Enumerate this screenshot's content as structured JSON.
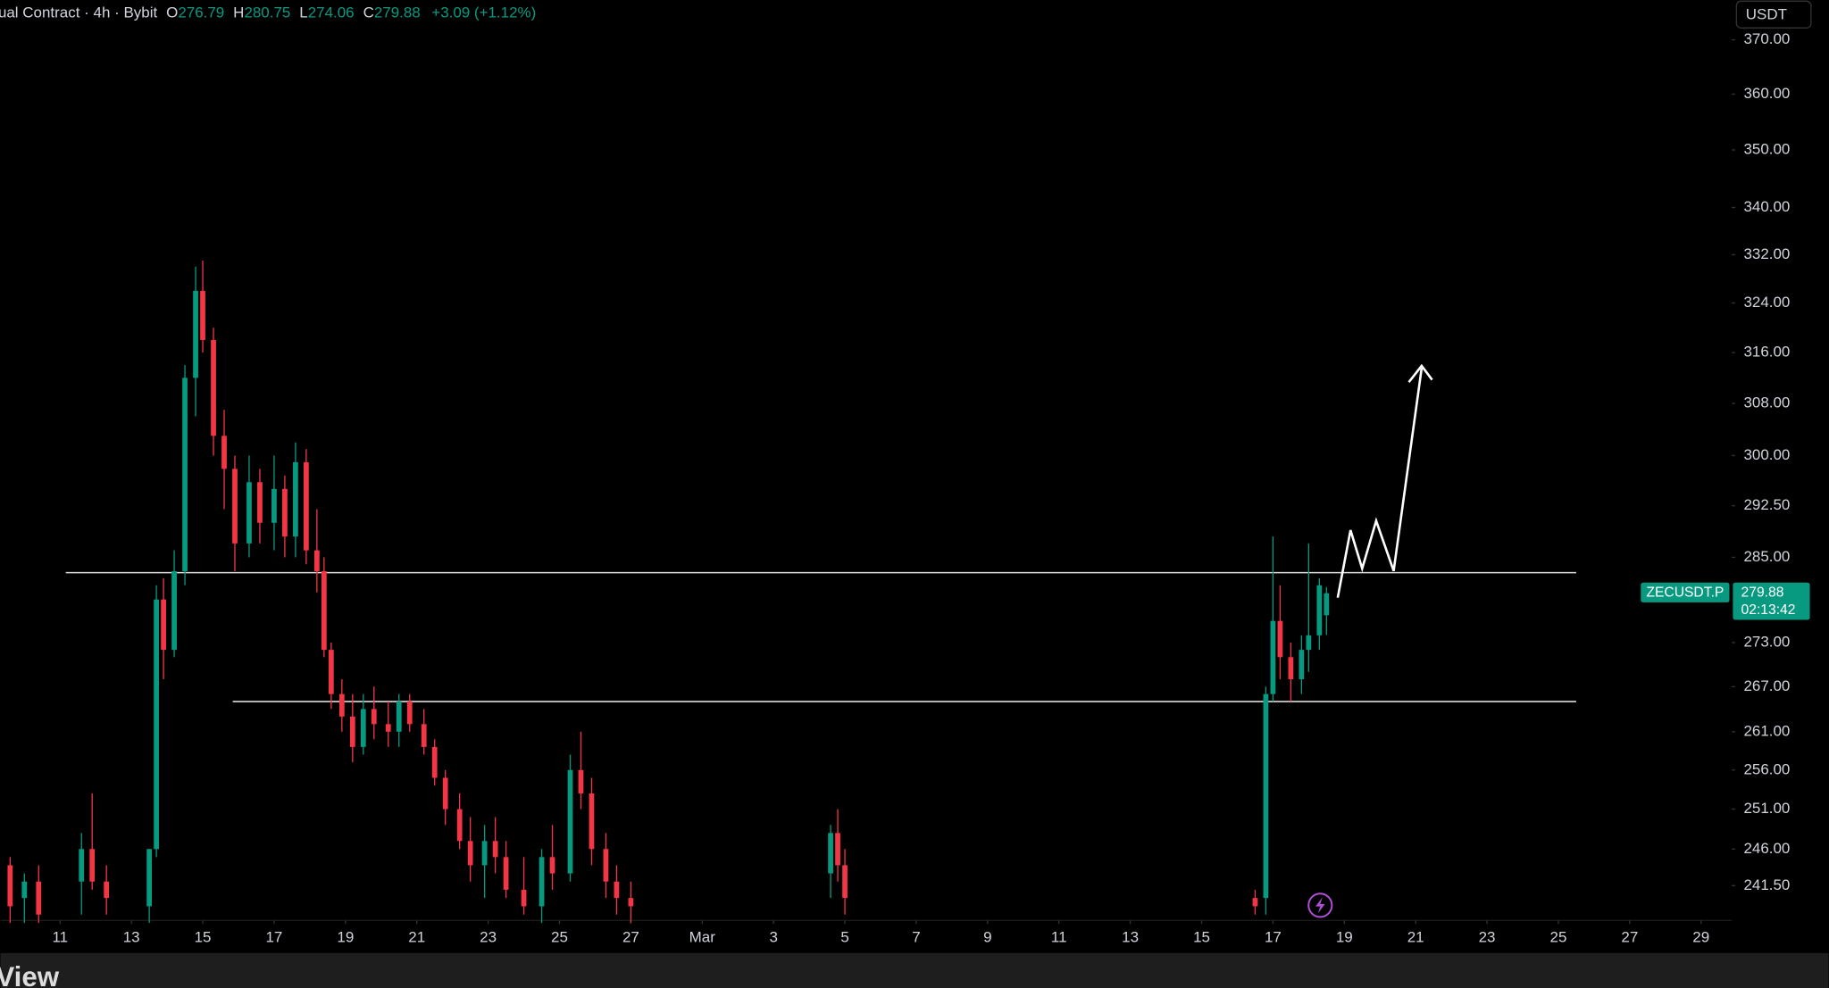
{
  "chart_data": {
    "type": "candlestick",
    "header": {
      "symbol": "ual Contract · 4h · Bybit",
      "o_label": "O",
      "h_label": "H",
      "l_label": "L",
      "c_label": "C",
      "open": 276.79,
      "high": 280.75,
      "low": 274.06,
      "close": 279.88,
      "change": "+3.09 (+1.12%)"
    },
    "currency": "USDT",
    "badge": {
      "symbol": "ZECUSDT.P",
      "price": 279.88,
      "countdown": "02:13:42"
    },
    "footer": "View",
    "log_scale": true,
    "up_color": "#089981",
    "down_color": "#f23645",
    "ylim": [
      237.3,
      377.5
    ],
    "yticks": [
      {
        "value": 370,
        "label": "370.00"
      },
      {
        "value": 360,
        "label": "360.00"
      },
      {
        "value": 350,
        "label": "350.00"
      },
      {
        "value": 340,
        "label": "340.00"
      },
      {
        "value": 332,
        "label": "332.00"
      },
      {
        "value": 324,
        "label": "324.00"
      },
      {
        "value": 316,
        "label": "316.00"
      },
      {
        "value": 308,
        "label": "308.00"
      },
      {
        "value": 300,
        "label": "300.00"
      },
      {
        "value": 292.5,
        "label": "292.50"
      },
      {
        "value": 285,
        "label": "285.00"
      },
      {
        "value": 273,
        "label": "273.00"
      },
      {
        "value": 267,
        "label": "267.00"
      },
      {
        "value": 261,
        "label": "261.00"
      },
      {
        "value": 256,
        "label": "256.00"
      },
      {
        "value": 251,
        "label": "251.00"
      },
      {
        "value": 246,
        "label": "246.00"
      },
      {
        "value": 241.5,
        "label": "241.50"
      }
    ],
    "xlim": [
      9.33,
      57.86
    ],
    "xticks": [
      11,
      13,
      15,
      17,
      19,
      21,
      23,
      25,
      27,
      {
        "value": 29,
        "label": "Mar"
      },
      {
        "value": 31,
        "label": "3"
      },
      {
        "value": 33,
        "label": "5"
      },
      {
        "value": 35,
        "label": "7"
      },
      {
        "value": 37,
        "label": "9"
      },
      {
        "value": 39,
        "label": "11"
      },
      {
        "value": 41,
        "label": "13"
      },
      {
        "value": 43,
        "label": "15"
      },
      {
        "value": 45,
        "label": "17"
      },
      {
        "value": 47,
        "label": "19"
      },
      {
        "value": 49,
        "label": "21"
      },
      {
        "value": 51,
        "label": "23"
      },
      {
        "value": 53,
        "label": "25"
      },
      {
        "value": 55,
        "label": "27"
      },
      {
        "value": 57,
        "label": "29"
      }
    ],
    "x": [
      9.6,
      10.0,
      10.4,
      11.6,
      11.9,
      12.3,
      13.5,
      13.7,
      13.9,
      14.2,
      14.5,
      14.8,
      15.0,
      15.3,
      15.6,
      15.9,
      16.3,
      16.6,
      17.0,
      17.3,
      17.6,
      17.9,
      18.2,
      18.4,
      18.6,
      18.9,
      19.2,
      19.5,
      19.8,
      20.2,
      20.5,
      20.8,
      21.2,
      21.5,
      21.8,
      22.2,
      22.5,
      22.9,
      23.2,
      23.5,
      24.0,
      24.5,
      24.8,
      25.3,
      25.6,
      25.9,
      26.3,
      26.6,
      27.0,
      32.6,
      32.8,
      33.0,
      44.5,
      44.8,
      45.0,
      45.2,
      45.5,
      45.8,
      46.0,
      46.3,
      46.5
    ],
    "open": [
      244,
      240,
      242,
      242,
      246,
      242,
      239,
      246,
      279,
      272,
      283,
      312,
      326,
      318,
      303,
      298,
      287,
      296,
      290,
      295,
      288,
      299,
      286,
      283,
      272,
      266,
      263,
      259,
      264,
      262,
      261,
      265,
      262,
      259,
      255,
      251,
      247,
      244,
      247,
      245,
      241,
      239,
      245,
      243,
      256,
      253,
      246,
      242,
      240,
      243,
      248,
      244,
      240,
      240,
      266,
      276,
      271,
      268,
      272,
      274,
      276.79
    ],
    "high": [
      245,
      243,
      244,
      248,
      253,
      244,
      246,
      281,
      282,
      286,
      314,
      330,
      331,
      320,
      307,
      300,
      300,
      298,
      300,
      297,
      302,
      301,
      292,
      285,
      273,
      268,
      266,
      266,
      267,
      265,
      266,
      266,
      264,
      260,
      256,
      253,
      250,
      249,
      250,
      247,
      245,
      246,
      249,
      258,
      261,
      255,
      248,
      244,
      242,
      249,
      251,
      246,
      241,
      267,
      288,
      281,
      273,
      274,
      287,
      282,
      280.75
    ],
    "low": [
      237,
      237,
      237,
      238,
      241,
      238,
      237,
      245,
      268,
      271,
      281,
      306,
      316,
      300,
      292,
      283,
      285,
      287,
      286,
      285,
      285,
      284,
      280,
      271,
      264,
      261,
      257,
      258,
      260,
      259,
      259,
      261,
      258,
      254,
      249,
      246,
      242,
      240,
      243,
      240,
      238,
      237,
      241,
      242,
      251,
      244,
      240,
      238,
      237,
      240,
      242,
      238,
      238,
      238,
      265,
      268,
      265,
      266,
      269,
      272,
      274.06
    ],
    "close": [
      239,
      242,
      238,
      246,
      242,
      240,
      246,
      279,
      272,
      283,
      312,
      326,
      318,
      303,
      298,
      287,
      296,
      290,
      295,
      288,
      299,
      286,
      283,
      272,
      266,
      263,
      259,
      264,
      262,
      261,
      265,
      262,
      259,
      255,
      251,
      247,
      244,
      247,
      245,
      241,
      239,
      245,
      243,
      256,
      253,
      246,
      242,
      240,
      239,
      248,
      244,
      240,
      239,
      266,
      276,
      271,
      268,
      272,
      274,
      281,
      279.88
    ],
    "levels": [
      {
        "value": 282.8,
        "x_start": 11.16,
        "x_end": 53.5
      },
      {
        "value": 265.0,
        "x_start": 15.84,
        "x_end": 53.5
      }
    ]
  }
}
